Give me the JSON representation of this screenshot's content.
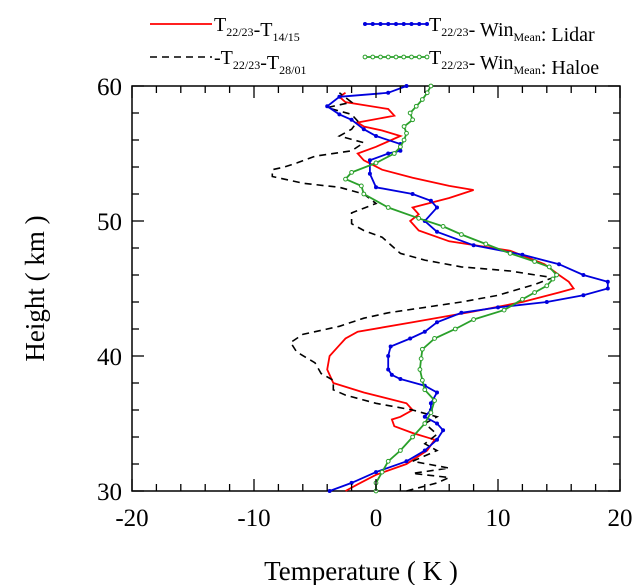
{
  "chart_data": {
    "type": "line",
    "xlabel": "Temperature ( K )",
    "ylabel": "Height ( km )",
    "xlim": [
      -20,
      20
    ],
    "ylim": [
      30,
      60
    ],
    "xticks": [
      "-20",
      "-10",
      "0",
      "10",
      "20"
    ],
    "yticks": [
      "30",
      "40",
      "50",
      "60"
    ],
    "grid": false,
    "legend_position": "top",
    "series": [
      {
        "key": "s1",
        "legend": {
          "a": "T",
          "a_sub": "22/23",
          "b": "-T",
          "b_sub": "14/15",
          "c": "",
          "c_sub": "",
          "d": ""
        },
        "color": "#ff0000",
        "style": "solid",
        "marker": "none",
        "points": [
          [
            -2.5,
            30
          ],
          [
            -1.5,
            30.5
          ],
          [
            0,
            31.2
          ],
          [
            2.5,
            32
          ],
          [
            4.2,
            33
          ],
          [
            4.8,
            33.8
          ],
          [
            3,
            34.3
          ],
          [
            1.5,
            34.8
          ],
          [
            1.3,
            35.3
          ],
          [
            2,
            35.5
          ],
          [
            3,
            36
          ],
          [
            2.5,
            36.5
          ],
          [
            -1,
            37.3
          ],
          [
            -3.5,
            38
          ],
          [
            -4,
            39
          ],
          [
            -3.8,
            40
          ],
          [
            -3,
            40.8
          ],
          [
            -2.5,
            41.3
          ],
          [
            -1.5,
            41.8
          ],
          [
            3,
            42.5
          ],
          [
            8,
            43.3
          ],
          [
            12,
            44
          ],
          [
            15,
            44.7
          ],
          [
            16.2,
            45
          ],
          [
            15.8,
            45.5
          ],
          [
            15,
            46
          ],
          [
            13.8,
            46.8
          ],
          [
            11,
            47.8
          ],
          [
            6,
            48.5
          ],
          [
            3.5,
            49.3
          ],
          [
            2.8,
            50
          ],
          [
            3.5,
            50.5
          ],
          [
            3,
            51
          ],
          [
            6,
            51.7
          ],
          [
            8,
            52.3
          ],
          [
            6,
            52.6
          ],
          [
            3,
            53.2
          ],
          [
            0.5,
            53.8
          ],
          [
            -1,
            54.5
          ],
          [
            -1.5,
            55
          ],
          [
            0,
            55.5
          ],
          [
            2,
            56.3
          ],
          [
            0.5,
            56.7
          ],
          [
            -1,
            57
          ],
          [
            -1.5,
            57.3
          ],
          [
            1.5,
            57.8
          ],
          [
            1,
            58.3
          ],
          [
            -2.5,
            58.8
          ],
          [
            -3,
            59.2
          ],
          [
            -2.5,
            59.5
          ]
        ]
      },
      {
        "key": "s2",
        "legend": {
          "a": "-T",
          "a_sub": "22/23",
          "b": "-T",
          "b_sub": "28/01",
          "c": "",
          "c_sub": "",
          "d": ""
        },
        "color": "#000000",
        "style": "dashed",
        "marker": "none",
        "points": [
          [
            2.5,
            30
          ],
          [
            5,
            30.6
          ],
          [
            6,
            31
          ],
          [
            3,
            31.3
          ],
          [
            6,
            31.7
          ],
          [
            3,
            32.2
          ],
          [
            5,
            33
          ],
          [
            4,
            33.5
          ],
          [
            5,
            34.2
          ],
          [
            4,
            35
          ],
          [
            5,
            35.5
          ],
          [
            3,
            36
          ],
          [
            0,
            36.5
          ],
          [
            -2.5,
            37.1
          ],
          [
            -3.5,
            37.5
          ],
          [
            -3.5,
            38.2
          ],
          [
            -4.5,
            38.7
          ],
          [
            -5,
            39.5
          ],
          [
            -6.5,
            40.3
          ],
          [
            -7,
            41
          ],
          [
            -6,
            41.6
          ],
          [
            -3,
            42.2
          ],
          [
            -1,
            42.8
          ],
          [
            1,
            43.2
          ],
          [
            4,
            43.6
          ],
          [
            7,
            44
          ],
          [
            10,
            44.5
          ],
          [
            13,
            45.3
          ],
          [
            14.5,
            45.8
          ],
          [
            11,
            46.3
          ],
          [
            7,
            46.6
          ],
          [
            4,
            47.1
          ],
          [
            2,
            47.6
          ],
          [
            0.5,
            48.8
          ],
          [
            -1,
            49.3
          ],
          [
            -2,
            49.8
          ],
          [
            -2,
            50.6
          ],
          [
            0,
            51.3
          ],
          [
            -1,
            52
          ],
          [
            -3,
            52.5
          ],
          [
            -6,
            52.8
          ],
          [
            -8.5,
            53.3
          ],
          [
            -8.5,
            53.8
          ],
          [
            -7.5,
            54
          ],
          [
            -6.5,
            54.3
          ],
          [
            -5,
            54.8
          ],
          [
            -2,
            55.2
          ],
          [
            -1,
            55.8
          ],
          [
            -3,
            56.3
          ],
          [
            -2,
            56.8
          ],
          [
            -1.5,
            57.4
          ],
          [
            -2,
            57.9
          ],
          [
            -4,
            58.4
          ],
          [
            -2,
            58.8
          ],
          [
            -3,
            59.5
          ]
        ]
      },
      {
        "key": "s3",
        "legend": {
          "a": "T",
          "a_sub": "22/23",
          "b": "- Win",
          "b_sub": "Mean",
          "c": "",
          "c_sub": "",
          "d": ": Lidar"
        },
        "color": "#0000dd",
        "style": "solid",
        "marker": "dot",
        "points": [
          [
            -3.8,
            30
          ],
          [
            -2,
            30.6
          ],
          [
            0,
            31.4
          ],
          [
            2.5,
            32.2
          ],
          [
            4,
            33
          ],
          [
            5,
            33.8
          ],
          [
            5.5,
            34.5
          ],
          [
            5,
            35
          ],
          [
            4,
            35.5
          ],
          [
            4.5,
            36
          ],
          [
            4.5,
            36.5
          ],
          [
            5,
            37.3
          ],
          [
            4,
            37.8
          ],
          [
            2,
            38.3
          ],
          [
            1.3,
            38.6
          ],
          [
            1,
            39
          ],
          [
            1,
            40
          ],
          [
            1.2,
            40.7
          ],
          [
            2.8,
            41.3
          ],
          [
            4,
            41.8
          ],
          [
            5,
            42.5
          ],
          [
            7,
            43.2
          ],
          [
            10,
            43.6
          ],
          [
            14,
            44
          ],
          [
            17,
            44.5
          ],
          [
            19,
            45
          ],
          [
            19,
            45.5
          ],
          [
            17,
            46
          ],
          [
            15,
            46.8
          ],
          [
            12,
            47.5
          ],
          [
            8,
            48.2
          ],
          [
            5,
            49.2
          ],
          [
            4,
            50
          ],
          [
            5,
            51
          ],
          [
            4.5,
            51.5
          ],
          [
            3,
            52
          ],
          [
            0,
            52.5
          ],
          [
            -0.5,
            53.5
          ],
          [
            -0.5,
            54.5
          ],
          [
            1,
            55
          ],
          [
            2,
            55.2
          ],
          [
            2,
            55.7
          ],
          [
            0,
            56.3
          ],
          [
            -1,
            56.8
          ],
          [
            -2,
            57.5
          ],
          [
            -3,
            57.9
          ],
          [
            -4,
            58.5
          ],
          [
            -3,
            59.2
          ],
          [
            1,
            59.5
          ],
          [
            2.5,
            60
          ]
        ]
      },
      {
        "key": "s4",
        "legend": {
          "a": "T",
          "a_sub": "22/23",
          "b": "- Win",
          "b_sub": "Mean",
          "c": "",
          "c_sub": "",
          "d": ": Haloe"
        },
        "color": "#2aa02a",
        "style": "solid",
        "marker": "circle",
        "points": [
          [
            0,
            30
          ],
          [
            0,
            30.6
          ],
          [
            0.5,
            31.4
          ],
          [
            1,
            32.2
          ],
          [
            2,
            33
          ],
          [
            3,
            34
          ],
          [
            4,
            35
          ],
          [
            4.5,
            35.8
          ],
          [
            4.8,
            36.7
          ],
          [
            4,
            37.5
          ],
          [
            3.8,
            38.2
          ],
          [
            3.6,
            39
          ],
          [
            3.7,
            39.8
          ],
          [
            3.8,
            40.5
          ],
          [
            4.8,
            41.3
          ],
          [
            6.5,
            42
          ],
          [
            8,
            42.7
          ],
          [
            10.5,
            43.4
          ],
          [
            12,
            44.2
          ],
          [
            13,
            44.7
          ],
          [
            14,
            45.2
          ],
          [
            14.5,
            45.7
          ],
          [
            14.8,
            46
          ],
          [
            14.2,
            46.6
          ],
          [
            13,
            47
          ],
          [
            11,
            47.6
          ],
          [
            9,
            48.3
          ],
          [
            7,
            49
          ],
          [
            5.5,
            49.6
          ],
          [
            3.5,
            50.2
          ],
          [
            1,
            51
          ],
          [
            -1,
            52
          ],
          [
            -1.2,
            52.6
          ],
          [
            -2.5,
            53.1
          ],
          [
            -2,
            53.6
          ],
          [
            0,
            54.3
          ],
          [
            1.5,
            55
          ],
          [
            2,
            55.5
          ],
          [
            2.3,
            56
          ],
          [
            2.5,
            56.5
          ],
          [
            2.3,
            57
          ],
          [
            3,
            57.5
          ],
          [
            2.8,
            58
          ],
          [
            3.3,
            58.5
          ],
          [
            3.8,
            59
          ],
          [
            4.2,
            59.5
          ],
          [
            4.5,
            60
          ]
        ]
      }
    ]
  }
}
